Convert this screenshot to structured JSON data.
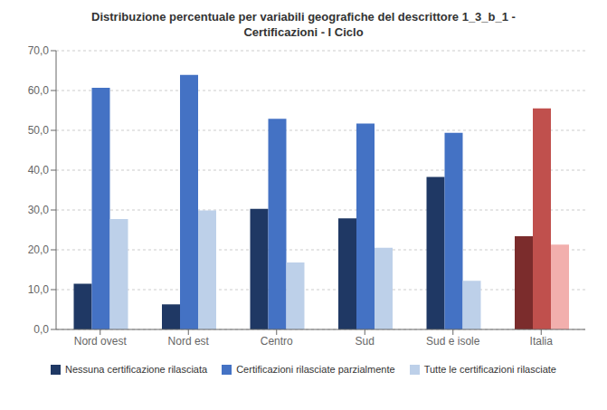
{
  "chart_data": {
    "type": "bar",
    "title": "Distribuzione percentuale per variabili geografiche del descrittore 1_3_b_1 -\nCertificazioni - I Ciclo",
    "categories": [
      "Nord ovest",
      "Nord est",
      "Centro",
      "Sud",
      "Sud e isole",
      "Italia"
    ],
    "series": [
      {
        "name": "Nessuna certificazione rilasciata",
        "color": "#1F3864",
        "values": [
          11.5,
          6.3,
          30.3,
          27.9,
          38.3,
          23.4
        ],
        "colors": [
          "#1F3864",
          "#1F3864",
          "#1F3864",
          "#1F3864",
          "#1F3864",
          "#7B2C2C"
        ]
      },
      {
        "name": "Certificazioni rilasciate parzialmente",
        "color": "#4472C4",
        "values": [
          60.7,
          63.9,
          52.9,
          51.7,
          49.4,
          55.5
        ],
        "colors": [
          "#4472C4",
          "#4472C4",
          "#4472C4",
          "#4472C4",
          "#4472C4",
          "#C0504D"
        ]
      },
      {
        "name": "Tutte le certificazioni rilasciate",
        "color": "#BDD0E9",
        "values": [
          27.7,
          29.9,
          16.8,
          20.5,
          12.2,
          21.3
        ],
        "colors": [
          "#BDD0E9",
          "#BDD0E9",
          "#BDD0E9",
          "#BDD0E9",
          "#BDD0E9",
          "#F2AFAD"
        ]
      }
    ],
    "ylim": [
      0,
      70
    ],
    "yticks": [
      {
        "value": 0,
        "label": "0,0"
      },
      {
        "value": 10,
        "label": "10,0"
      },
      {
        "value": 20,
        "label": "20,0"
      },
      {
        "value": 30,
        "label": "30,0"
      },
      {
        "value": 40,
        "label": "40,0"
      },
      {
        "value": 50,
        "label": "50,0"
      },
      {
        "value": 60,
        "label": "60,0"
      },
      {
        "value": 70,
        "label": "70,0"
      }
    ],
    "grid": true,
    "legend": "bottom"
  }
}
